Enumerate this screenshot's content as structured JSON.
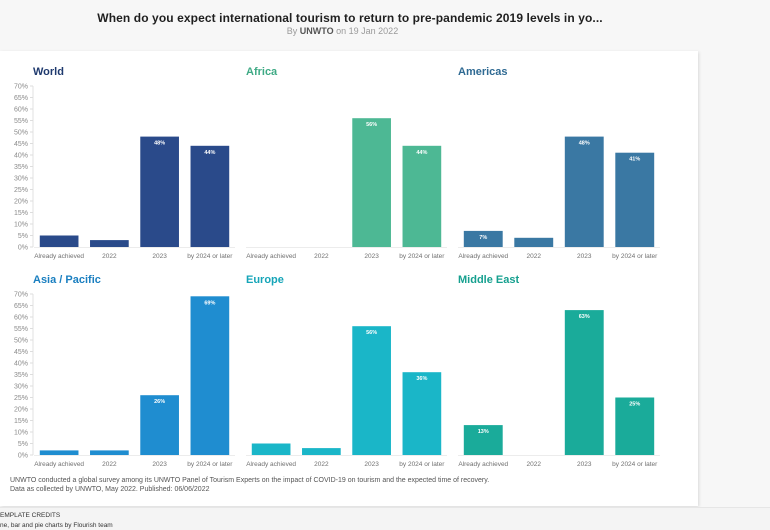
{
  "header": {
    "title": "When do you expect international tourism to return to pre-pandemic 2019 levels in yo...",
    "by_prefix": "By ",
    "author": "UNWTO",
    "date_text": " on 19 Jan 2022"
  },
  "footnote": {
    "line1": "UNWTO conducted a global survey among its UNWTO Panel of Tourism Experts on the impact of COVID-19 on tourism and the expected time of recovery.",
    "line2": "Data as collected by UNWTO, May 2022. Published: 06/06/2022"
  },
  "credits": {
    "title": "EMPLATE CREDITS",
    "text": "ne, bar and pie charts by Flourish team"
  },
  "chart_data": [
    {
      "type": "bar",
      "title": "World",
      "color": "#2a4a8a",
      "title_color": "#1f3a6e",
      "categories": [
        "Already achieved",
        "2022",
        "2023",
        "by 2024 or later"
      ],
      "values": [
        5,
        3,
        48,
        44
      ],
      "data_labels": [
        "",
        "",
        "48%",
        "44%"
      ],
      "ylim": [
        0,
        70
      ],
      "yticks": [
        "0%",
        "5%",
        "10%",
        "15%",
        "20%",
        "25%",
        "30%",
        "35%",
        "40%",
        "45%",
        "50%",
        "55%",
        "60%",
        "65%",
        "70%"
      ],
      "show_yaxis": true
    },
    {
      "type": "bar",
      "title": "Africa",
      "color": "#4db894",
      "title_color": "#3faa85",
      "categories": [
        "Already achieved",
        "2022",
        "2023",
        "by 2024 or later"
      ],
      "values": [
        0,
        0,
        56,
        44
      ],
      "data_labels": [
        "",
        "",
        "56%",
        "44%"
      ],
      "ylim": [
        0,
        70
      ],
      "show_yaxis": false
    },
    {
      "type": "bar",
      "title": "Americas",
      "color": "#3a78a3",
      "title_color": "#2f6a93",
      "categories": [
        "Already achieved",
        "2022",
        "2023",
        "by 2024 or later"
      ],
      "values": [
        7,
        4,
        48,
        41
      ],
      "data_labels": [
        "7%",
        "",
        "48%",
        "41%"
      ],
      "ylim": [
        0,
        70
      ],
      "show_yaxis": false
    },
    {
      "type": "bar",
      "title": "Asia / Pacific",
      "color": "#1f8dd0",
      "title_color": "#1a7fc0",
      "categories": [
        "Already achieved",
        "2022",
        "2023",
        "by 2024 or later"
      ],
      "values": [
        2,
        2,
        26,
        69
      ],
      "data_labels": [
        "",
        "",
        "26%",
        "69%"
      ],
      "ylim": [
        0,
        70
      ],
      "yticks": [
        "0%",
        "5%",
        "10%",
        "15%",
        "20%",
        "25%",
        "30%",
        "35%",
        "40%",
        "45%",
        "50%",
        "55%",
        "60%",
        "65%",
        "70%"
      ],
      "show_yaxis": true
    },
    {
      "type": "bar",
      "title": "Europe",
      "color": "#1ab6c8",
      "title_color": "#16a5b8",
      "categories": [
        "Already achieved",
        "2022",
        "2023",
        "by 2024 or later"
      ],
      "values": [
        5,
        3,
        56,
        36
      ],
      "data_labels": [
        "",
        "",
        "56%",
        "36%"
      ],
      "ylim": [
        0,
        70
      ],
      "show_yaxis": false
    },
    {
      "type": "bar",
      "title": "Middle East",
      "color": "#1aab9a",
      "title_color": "#16a08f",
      "categories": [
        "Already achieved",
        "2022",
        "2023",
        "by 2024 or later"
      ],
      "values": [
        13,
        0,
        63,
        25
      ],
      "data_labels": [
        "13%",
        "",
        "63%",
        "25%"
      ],
      "ylim": [
        0,
        70
      ],
      "show_yaxis": false
    }
  ]
}
